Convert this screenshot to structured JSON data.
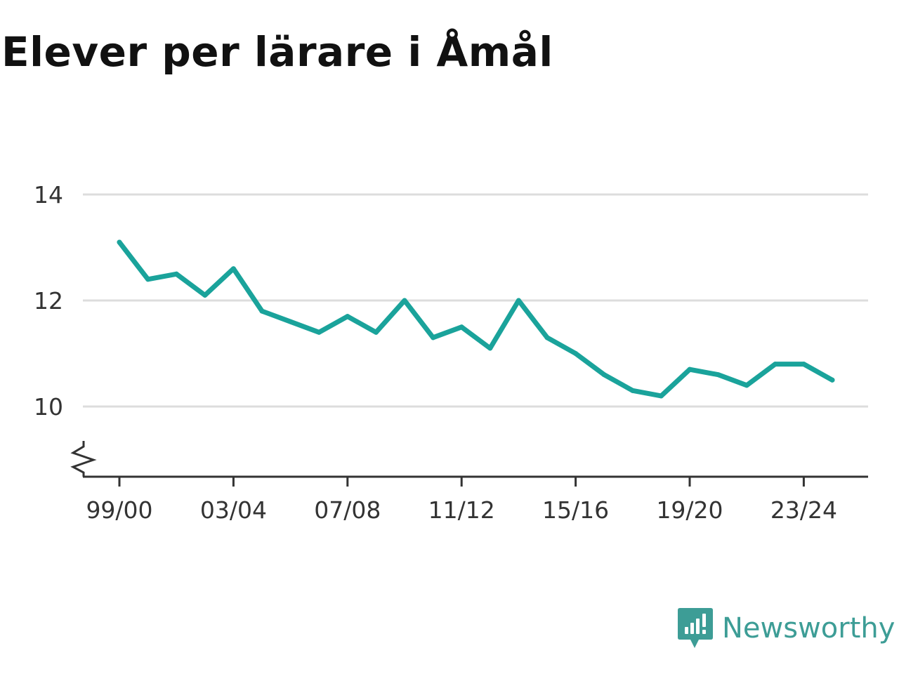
{
  "chart_data": {
    "type": "line",
    "title": "Elever per lärare i Åmål",
    "xlabel": "",
    "ylabel": "",
    "x": [
      "99/00",
      "00/01",
      "01/02",
      "02/03",
      "03/04",
      "04/05",
      "05/06",
      "06/07",
      "07/08",
      "08/09",
      "09/10",
      "10/11",
      "11/12",
      "12/13",
      "13/14",
      "14/15",
      "15/16",
      "16/17",
      "17/18",
      "18/19",
      "19/20",
      "20/21",
      "21/22",
      "22/23",
      "23/24",
      "24/25"
    ],
    "x_tick_labels": [
      "99/00",
      "03/04",
      "07/08",
      "11/12",
      "15/16",
      "19/20",
      "23/24"
    ],
    "series": [
      {
        "values": [
          13.1,
          12.4,
          12.5,
          12.1,
          12.6,
          11.8,
          11.6,
          11.4,
          11.7,
          11.4,
          12.0,
          11.3,
          11.5,
          11.1,
          12.0,
          11.3,
          11.0,
          10.6,
          10.3,
          10.2,
          10.7,
          10.6,
          10.4,
          10.8,
          10.8,
          10.5
        ]
      }
    ],
    "y_ticks": [
      10,
      12,
      14
    ],
    "y_tick_labels": [
      "10",
      "12",
      "14"
    ],
    "ylim": [
      8.7,
      14
    ],
    "y_axis_break": true,
    "grid": "horizontal",
    "legend": "none",
    "line_color": "#1aa39b",
    "grid_color": "#dddddd",
    "axis_color": "#333333"
  },
  "brand": {
    "name": "Newsworthy",
    "icon": "newsworthy-logo-icon",
    "color": "#3d9d96"
  }
}
